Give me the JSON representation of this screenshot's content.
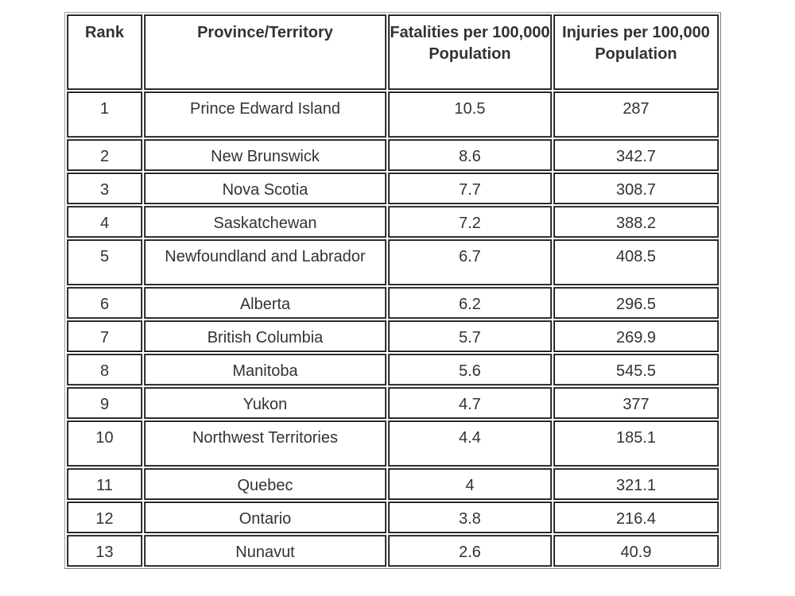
{
  "table": {
    "headers": {
      "rank": "Rank",
      "province": "Province/Territory",
      "fatalities": "Fatalities per 100,000 Population",
      "injuries": "Injuries per 100,000 Population"
    },
    "rows": [
      {
        "rank": "1",
        "province": "Prince Edward Island",
        "fatalities": "10.5",
        "injuries": "287"
      },
      {
        "rank": "2",
        "province": "New Brunswick",
        "fatalities": "8.6",
        "injuries": "342.7"
      },
      {
        "rank": "3",
        "province": "Nova Scotia",
        "fatalities": "7.7",
        "injuries": "308.7"
      },
      {
        "rank": "4",
        "province": "Saskatchewan",
        "fatalities": "7.2",
        "injuries": "388.2"
      },
      {
        "rank": "5",
        "province": "Newfoundland and Labrador",
        "fatalities": "6.7",
        "injuries": "408.5"
      },
      {
        "rank": "6",
        "province": "Alberta",
        "fatalities": "6.2",
        "injuries": "296.5"
      },
      {
        "rank": "7",
        "province": "British Columbia",
        "fatalities": "5.7",
        "injuries": "269.9"
      },
      {
        "rank": "8",
        "province": "Manitoba",
        "fatalities": "5.6",
        "injuries": "545.5"
      },
      {
        "rank": "9",
        "province": "Yukon",
        "fatalities": "4.7",
        "injuries": "377"
      },
      {
        "rank": "10",
        "province": "Northwest Territories",
        "fatalities": "4.4",
        "injuries": "185.1"
      },
      {
        "rank": "11",
        "province": "Quebec",
        "fatalities": "4",
        "injuries": "321.1"
      },
      {
        "rank": "12",
        "province": "Ontario",
        "fatalities": "3.8",
        "injuries": "216.4"
      },
      {
        "rank": "13",
        "province": "Nunavut",
        "fatalities": "2.6",
        "injuries": "40.9"
      }
    ]
  }
}
